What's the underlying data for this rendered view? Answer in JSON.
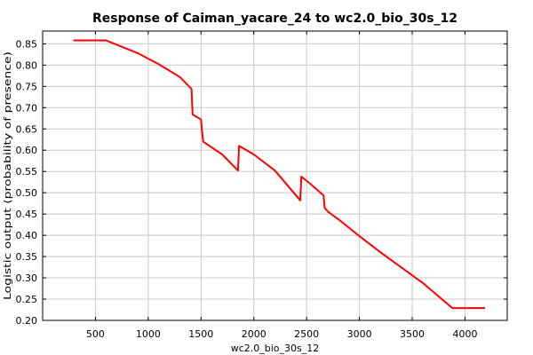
{
  "chart_data": {
    "type": "line",
    "title": "Response of Caiman_yacare_24 to wc2.0_bio_30s_12",
    "xlabel": "wc2.0_bio_30s_12",
    "ylabel": "Logistic output (probability of presence)",
    "xlim": [
      0,
      4400
    ],
    "ylim": [
      0.2,
      0.88
    ],
    "grid": true,
    "x_ticks": [
      500,
      1000,
      1500,
      2000,
      2500,
      3000,
      3500,
      4000
    ],
    "y_ticks": [
      0.2,
      0.25,
      0.3,
      0.35,
      0.4,
      0.45,
      0.5,
      0.55,
      0.6,
      0.65,
      0.7,
      0.75,
      0.8,
      0.85
    ],
    "series": [
      {
        "color": "#ff0000",
        "x": [
          290,
          600,
          700,
          900,
          1100,
          1300,
          1410,
          1420,
          1500,
          1510,
          1520,
          1700,
          1850,
          1860,
          2000,
          2200,
          2440,
          2450,
          2540,
          2660,
          2670,
          2700,
          2800,
          3000,
          3200,
          3400,
          3600,
          3880,
          4190
        ],
        "y": [
          0.858,
          0.858,
          0.848,
          0.828,
          0.802,
          0.772,
          0.744,
          0.684,
          0.672,
          0.643,
          0.62,
          0.59,
          0.552,
          0.61,
          0.59,
          0.552,
          0.482,
          0.538,
          0.52,
          0.494,
          0.465,
          0.456,
          0.438,
          0.398,
          0.36,
          0.324,
          0.288,
          0.229,
          0.229
        ]
      }
    ]
  }
}
